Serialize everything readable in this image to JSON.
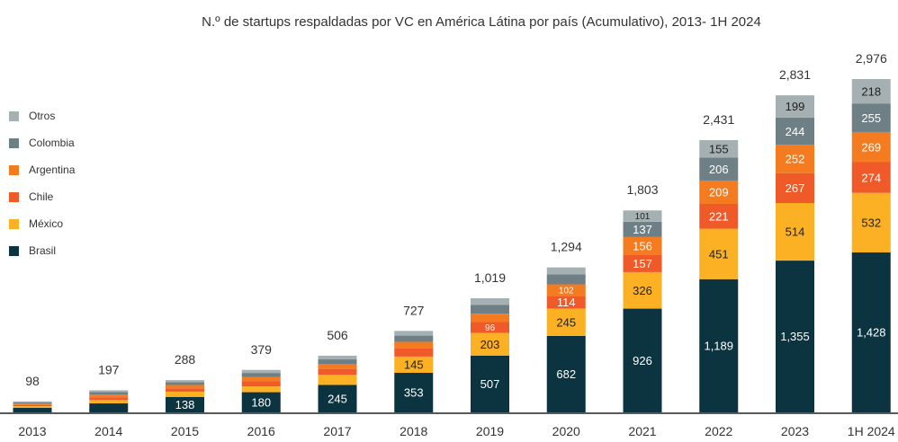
{
  "chart_data": {
    "type": "bar",
    "stacked": true,
    "title": "N.º de startups respaldadas por VC en América Látina por país (Acumulativo), 2013- 1H 2024",
    "categories": [
      "2013",
      "2014",
      "2015",
      "2016",
      "2017",
      "2018",
      "2019",
      "2020",
      "2021",
      "2022",
      "2023",
      "1H 2024"
    ],
    "totals": [
      98,
      197,
      288,
      379,
      506,
      727,
      1019,
      1294,
      1803,
      2431,
      2831,
      2976
    ],
    "total_labels": [
      "98",
      "197",
      "288",
      "379",
      "506",
      "727",
      "1,019",
      "1,294",
      "1,803",
      "2,431",
      "2,831",
      "2,976"
    ],
    "series": [
      {
        "name": "Brasil",
        "color": "#0b3440",
        "text_color": "#ffffff",
        "values": [
          40,
          80,
          138,
          180,
          245,
          353,
          507,
          682,
          926,
          1189,
          1355,
          1428
        ],
        "labels": [
          "",
          "",
          "138",
          "180",
          "245",
          "353",
          "507",
          "682",
          "926",
          "1,189",
          "1,355",
          "1,428"
        ]
      },
      {
        "name": "México",
        "color": "#fbb123",
        "text_color": "#222222",
        "values": [
          15,
          30,
          47,
          52,
          90,
          145,
          203,
          245,
          326,
          451,
          514,
          532
        ],
        "labels": [
          "",
          "",
          "",
          "",
          "",
          "145",
          "203",
          "245",
          "326",
          "451",
          "514",
          "532"
        ]
      },
      {
        "name": "Chile",
        "color": "#f05a28",
        "text_color": "#ffffff",
        "values": [
          12,
          25,
          30,
          45,
          53,
          72,
          96,
          114,
          157,
          221,
          267,
          274
        ],
        "labels": [
          "",
          "",
          "",
          "",
          "",
          "",
          "96",
          "114",
          "157",
          "221",
          "267",
          "274"
        ]
      },
      {
        "name": "Argentina",
        "color": "#f47b20",
        "text_color": "#ffffff",
        "values": [
          12,
          25,
          30,
          40,
          45,
          60,
          75,
          102,
          156,
          209,
          252,
          269
        ],
        "labels": [
          "",
          "",
          "",
          "",
          "",
          "",
          "",
          "102",
          "156",
          "209",
          "252",
          "269"
        ]
      },
      {
        "name": "Colombia",
        "color": "#6e7f86",
        "text_color": "#ffffff",
        "values": [
          11,
          22,
          25,
          35,
          40,
          55,
          80,
          90,
          137,
          206,
          244,
          255
        ],
        "labels": [
          "",
          "",
          "",
          "",
          "",
          "",
          "",
          "",
          "137",
          "206",
          "244",
          "255"
        ]
      },
      {
        "name": "Otros",
        "color": "#a5b0b3",
        "text_color": "#222222",
        "values": [
          8,
          15,
          18,
          27,
          33,
          42,
          58,
          61,
          101,
          155,
          199,
          218
        ],
        "labels": [
          "",
          "",
          "",
          "",
          "",
          "",
          "",
          "",
          "101",
          "155",
          "199",
          "218"
        ]
      }
    ],
    "legend": {
      "placement": "left",
      "order": [
        "Otros",
        "Colombia",
        "Argentina",
        "Chile",
        "México",
        "Brasil"
      ]
    },
    "grid": false,
    "ylim": [
      0,
      2976
    ]
  }
}
